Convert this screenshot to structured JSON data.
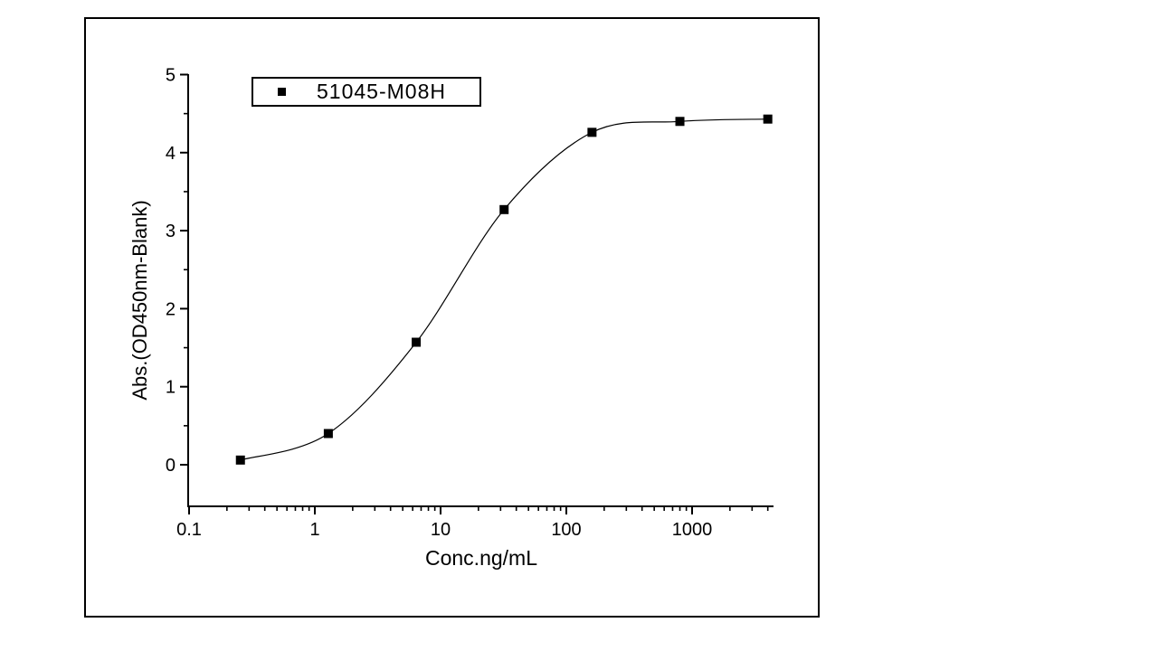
{
  "figure": {
    "legend": {
      "label": "51045-M08H",
      "marker": "filled-square",
      "marker_color": "#000000"
    },
    "x_axis_title": "Conc.ng/mL",
    "y_axis_title": "Abs.(OD450nm-Blank)"
  },
  "chart_data": {
    "type": "scatter",
    "title": "",
    "series": [
      {
        "name": "51045-M08H",
        "x": [
          0.256,
          1.28,
          6.4,
          32,
          160,
          800,
          4000
        ],
        "y": [
          0.06,
          0.4,
          1.57,
          3.27,
          4.26,
          4.4,
          4.43
        ],
        "marker": "square",
        "marker_size_px": 10,
        "color": "#000000",
        "fit": "4PL sigmoidal dose-response curve through points"
      }
    ],
    "xlabel": "Conc.ng/mL",
    "ylabel": "Abs.(OD450nm-Blank)",
    "x_scale": "log10",
    "y_scale": "linear",
    "xlim": [
      0.088,
      4500
    ],
    "ylim": [
      -0.53,
      5
    ],
    "x_major_ticks": [
      0.1,
      1,
      10,
      100,
      1000
    ],
    "x_major_tick_labels": [
      "0.1",
      "1",
      "10",
      "100",
      "1000"
    ],
    "x_minor_ticks": "log decade minors 2-9 per decade up to 4000",
    "y_major_ticks": [
      0,
      1,
      2,
      3,
      4,
      5
    ],
    "y_major_tick_labels": [
      "0",
      "1",
      "2",
      "3",
      "4",
      "5"
    ],
    "y_minor_step": 0.5,
    "grid": false,
    "legend_position": "top-left-inside",
    "colors": {
      "axis": "#000000",
      "text": "#000000",
      "curve": "#000000",
      "marker": "#000000",
      "background": "#ffffff"
    }
  }
}
